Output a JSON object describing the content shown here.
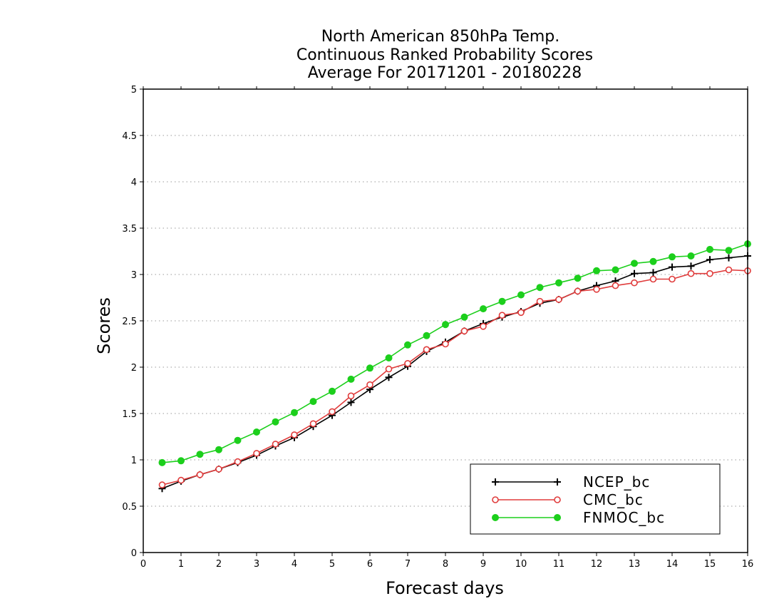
{
  "chart_data": {
    "type": "line",
    "title": [
      "North American 850hPa Temp.",
      "Continuous Ranked Probability Scores",
      "Average For 20171201 - 20180228"
    ],
    "xlabel": "Forecast days",
    "ylabel": "Scores",
    "xlim": [
      0,
      16
    ],
    "ylim": [
      0,
      5
    ],
    "xticks": [
      0,
      1,
      2,
      3,
      4,
      5,
      6,
      7,
      8,
      9,
      10,
      11,
      12,
      13,
      14,
      15,
      16
    ],
    "xtick_labels": [
      "0",
      "1",
      "2",
      "3",
      "4",
      "5",
      "6",
      "7",
      "8",
      "9",
      "10",
      "11",
      "12",
      "13",
      "14",
      "15",
      "16"
    ],
    "yticks": [
      0,
      0.5,
      1,
      1.5,
      2,
      2.5,
      3,
      3.5,
      4,
      4.5,
      5
    ],
    "ytick_labels": [
      "0",
      "0.5",
      "1",
      "1.5",
      "2",
      "2.5",
      "3",
      "3.5",
      "4",
      "4.5",
      "5"
    ],
    "grid": "dotted horizontal",
    "legend_position": "bottom-right",
    "x": [
      0.5,
      1,
      1.5,
      2,
      2.5,
      3,
      3.5,
      4,
      4.5,
      5,
      5.5,
      6,
      6.5,
      7,
      7.5,
      8,
      8.5,
      9,
      9.5,
      10,
      10.5,
      11,
      11.5,
      12,
      12.5,
      13,
      13.5,
      14,
      14.5,
      15,
      15.5,
      16
    ],
    "series": [
      {
        "name": "NCEP_bc",
        "color": "#000000",
        "marker": "plus",
        "values": [
          0.69,
          0.77,
          0.84,
          0.9,
          0.97,
          1.05,
          1.15,
          1.24,
          1.36,
          1.48,
          1.62,
          1.76,
          1.89,
          2.01,
          2.17,
          2.27,
          2.39,
          2.47,
          2.54,
          2.6,
          2.69,
          2.73,
          2.82,
          2.88,
          2.93,
          3.01,
          3.02,
          3.08,
          3.09,
          3.16,
          3.18,
          3.2
        ]
      },
      {
        "name": "CMC_bc",
        "color": "#e03c3c",
        "marker": "open-circle",
        "values": [
          0.73,
          0.78,
          0.84,
          0.9,
          0.98,
          1.07,
          1.17,
          1.27,
          1.39,
          1.52,
          1.69,
          1.81,
          1.98,
          2.04,
          2.19,
          2.25,
          2.39,
          2.44,
          2.56,
          2.59,
          2.71,
          2.73,
          2.82,
          2.84,
          2.88,
          2.91,
          2.95,
          2.95,
          3.01,
          3.01,
          3.05,
          3.04
        ]
      },
      {
        "name": "FNMOC_bc",
        "color": "#1ccf1c",
        "marker": "filled-circle",
        "values": [
          0.97,
          0.99,
          1.06,
          1.11,
          1.21,
          1.3,
          1.41,
          1.51,
          1.63,
          1.74,
          1.87,
          1.99,
          2.1,
          2.24,
          2.34,
          2.46,
          2.54,
          2.63,
          2.71,
          2.78,
          2.86,
          2.91,
          2.96,
          3.04,
          3.05,
          3.12,
          3.14,
          3.19,
          3.2,
          3.27,
          3.26,
          3.33
        ]
      }
    ]
  }
}
